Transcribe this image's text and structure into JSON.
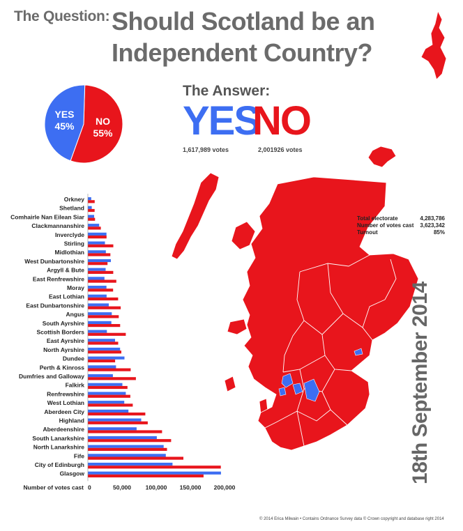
{
  "header": {
    "question_label": "The Question:",
    "title_line1": "Should Scotland be an",
    "title_line2": "Independent Country?"
  },
  "answer": {
    "label": "The Answer:",
    "yes_word": "YES",
    "no_word": "NO",
    "yes_votes": "1,617,989 votes",
    "no_votes": "2,001926 votes"
  },
  "colors": {
    "yes": "#3d6ef2",
    "no": "#e8151c",
    "heading_grey": "#6b6b6b"
  },
  "stats": {
    "total_electorate_label": "Total electorate",
    "total_electorate_value": "4,283,786",
    "votes_cast_label": "Number of votes cast",
    "votes_cast_value": "3,623,342",
    "turnout_label": "Turnout",
    "turnout_value": "85%"
  },
  "date_label": "18th September 2014",
  "footer": "© 2014 Erica Milwain  •  Contains Ordnance Survey data © Crown copyright and database right 2014",
  "chart_data": [
    {
      "type": "pie",
      "categories": [
        "YES",
        "NO"
      ],
      "values": [
        45,
        55
      ],
      "labels": [
        "YES\n45%",
        "NO\n55%"
      ],
      "colors": [
        "#3d6ef2",
        "#e8151c"
      ]
    },
    {
      "type": "bar",
      "orientation": "horizontal",
      "xlabel": "Number of votes cast",
      "xlim": [
        0,
        200000
      ],
      "xticks": [
        0,
        50000,
        100000,
        150000,
        200000
      ],
      "xtick_labels": [
        "0",
        "50,000",
        "100,000",
        "150,000",
        "200,000"
      ],
      "categories": [
        "Orkney",
        "Shetland",
        "Comhairle Nan Eilean Siar",
        "Clackmannanshire",
        "Inverclyde",
        "Stirling",
        "Midlothian",
        "West Dunbartonshire",
        "Argyll & Bute",
        "East Renfrewshire",
        "Moray",
        "East Lothian",
        "East Dunbartonshire",
        "Angus",
        "South Ayrshire",
        "Scottish Borders",
        "East Ayrshire",
        "North Ayrshire",
        "Dundee",
        "Perth & Kinross",
        "Dumfries and Galloway",
        "Falkirk",
        "Renfrewshire",
        "West Lothian",
        "Aberdeen City",
        "Highland",
        "Aberdeenshire",
        "South Lanarkshire",
        "North Lanarkshire",
        "Fife",
        "City of Edinburgh",
        "Glasgow"
      ],
      "series": [
        {
          "name": "YES",
          "color": "#3d6ef2",
          "values": [
            4900,
            5700,
            9200,
            16500,
            27200,
            25000,
            26300,
            33700,
            26000,
            24300,
            27200,
            27500,
            30600,
            35000,
            34400,
            27900,
            39800,
            47100,
            53600,
            41200,
            36600,
            50500,
            55500,
            53300,
            59400,
            78100,
            71300,
            100900,
            110900,
            114100,
            123900,
            194800
          ]
        },
        {
          "name": "NO",
          "color": "#e8151c",
          "values": [
            10000,
            9900,
            10500,
            19000,
            27300,
            37200,
            33000,
            28800,
            37100,
            41600,
            36900,
            44300,
            48100,
            45200,
            47200,
            55500,
            44400,
            49000,
            39900,
            62700,
            70300,
            58000,
            62100,
            65700,
            84100,
            87700,
            108600,
            121800,
            115800,
            139800,
            194600,
            169300
          ]
        }
      ]
    }
  ]
}
